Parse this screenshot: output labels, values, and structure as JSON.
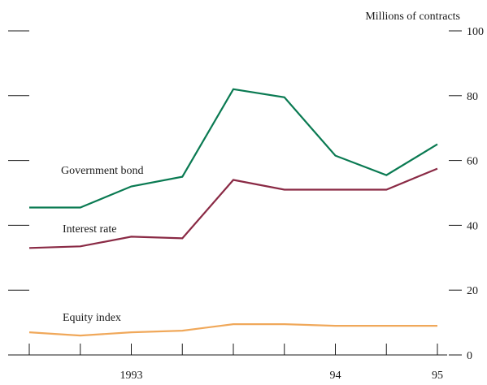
{
  "chart_data": {
    "type": "line",
    "title": "",
    "unit_label": "Millions of contracts",
    "xlabel": "",
    "ylabel": "",
    "ylim": [
      0,
      100
    ],
    "y_ticks": [
      0,
      20,
      40,
      60,
      80,
      100
    ],
    "x_tick_labels": [
      {
        "label": "1993",
        "at": 2
      },
      {
        "label": "94",
        "at": 6
      },
      {
        "label": "95",
        "at": 8
      }
    ],
    "x_count": 9,
    "legend": "inline-labels",
    "grid": false,
    "series": [
      {
        "name": "Government bond",
        "color": "#0a7a52",
        "values": [
          45.5,
          45.5,
          52,
          55,
          82,
          79.5,
          61.5,
          55.5,
          65
        ]
      },
      {
        "name": "Interest rate",
        "color": "#8a2a45",
        "values": [
          33,
          33.5,
          36.5,
          36,
          54,
          51,
          51,
          51,
          57.5
        ]
      },
      {
        "name": "Equity index",
        "color": "#f0a85a",
        "values": [
          7,
          6,
          7,
          7.5,
          9.5,
          9.5,
          9,
          9,
          9
        ]
      }
    ]
  }
}
